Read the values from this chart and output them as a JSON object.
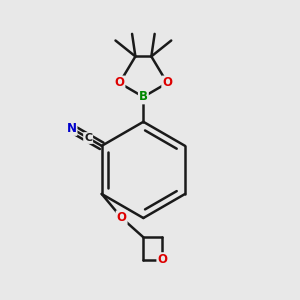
{
  "bg_color": "#e8e8e8",
  "bond_color": "#1a1a1a",
  "atom_colors": {
    "O": "#dd0000",
    "B": "#008800",
    "N": "#0000cc",
    "C": "#1a1a1a"
  },
  "bond_width": 1.8,
  "figsize": [
    3.0,
    3.0
  ],
  "dpi": 100
}
